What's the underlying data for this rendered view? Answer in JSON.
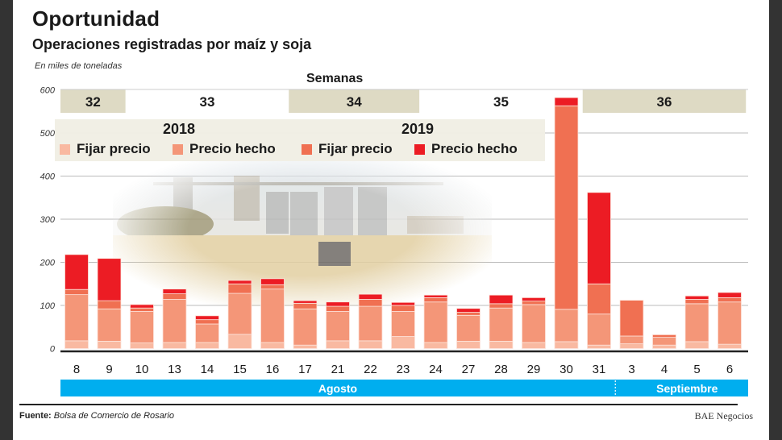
{
  "title": "Oportunidad",
  "subtitle": "Operaciones registradas por maíz y soja",
  "units": "En miles de toneladas",
  "weeks_label": "Semanas",
  "weeks": [
    {
      "label": "32",
      "shaded": true,
      "from": 0,
      "to": 1
    },
    {
      "label": "33",
      "shaded": false,
      "from": 2,
      "to": 6
    },
    {
      "label": "34",
      "shaded": true,
      "from": 7,
      "to": 10
    },
    {
      "label": "35",
      "shaded": false,
      "from": 11,
      "to": 15
    },
    {
      "label": "36",
      "shaded": true,
      "from": 16,
      "to": 20
    }
  ],
  "months": [
    {
      "label": "Agosto",
      "from": 0,
      "to": 16
    },
    {
      "label": "Septiembre",
      "from": 17,
      "to": 20
    }
  ],
  "legend": {
    "year_2018": "2018",
    "year_2019": "2019",
    "items": [
      {
        "label": "Fijar precio",
        "color": "#f9b9a1"
      },
      {
        "label": "Precio hecho",
        "color": "#f49678"
      },
      {
        "label": "Fijar precio",
        "color": "#f07052"
      },
      {
        "label": "Precio hecho",
        "color": "#ec1c24"
      }
    ]
  },
  "colors": {
    "week_band": "#dedac4",
    "month_band": "#00aeef",
    "grid": "#bbbbbb",
    "axis": "#222222"
  },
  "footer": {
    "source_label": "Fuente:",
    "source_text": "Bolsa de Comercio de Rosario",
    "brand": "BAE Negocios"
  },
  "chart_data": {
    "type": "bar",
    "stacked": true,
    "title": "Oportunidad",
    "subtitle": "Operaciones registradas por maíz y soja",
    "xlabel": "",
    "ylabel": "En miles de toneladas",
    "ylim": [
      0,
      600
    ],
    "yticks": [
      0,
      100,
      200,
      300,
      400,
      500,
      600
    ],
    "grid": true,
    "legend_position": "top-left",
    "categories": [
      "8",
      "9",
      "10",
      "13",
      "14",
      "15",
      "16",
      "17",
      "21",
      "22",
      "23",
      "24",
      "27",
      "28",
      "29",
      "30",
      "31",
      "3",
      "4",
      "5",
      "6"
    ],
    "series": [
      {
        "name": "2018 Fijar precio",
        "color": "#f9b9a1",
        "values": [
          18,
          17,
          13,
          14,
          14,
          33,
          14,
          8,
          18,
          18,
          28,
          14,
          17,
          17,
          14,
          16,
          8,
          11,
          8,
          16,
          10
        ]
      },
      {
        "name": "2018 Precio hecho",
        "color": "#f49678",
        "values": [
          107,
          75,
          73,
          100,
          43,
          95,
          124,
          84,
          68,
          80,
          58,
          94,
          60,
          77,
          88,
          75,
          72,
          18,
          18,
          88,
          98
        ]
      },
      {
        "name": "2019 Fijar precio",
        "color": "#f07052",
        "values": [
          12,
          19,
          8,
          13,
          10,
          22,
          10,
          13,
          12,
          16,
          14,
          10,
          7,
          10,
          8,
          472,
          70,
          83,
          6,
          10,
          10
        ]
      },
      {
        "name": "2019 Precio hecho",
        "color": "#ec1c24",
        "values": [
          81,
          98,
          8,
          11,
          9,
          8,
          14,
          6,
          10,
          12,
          7,
          6,
          9,
          20,
          8,
          19,
          212,
          0,
          0,
          8,
          12
        ]
      }
    ]
  }
}
